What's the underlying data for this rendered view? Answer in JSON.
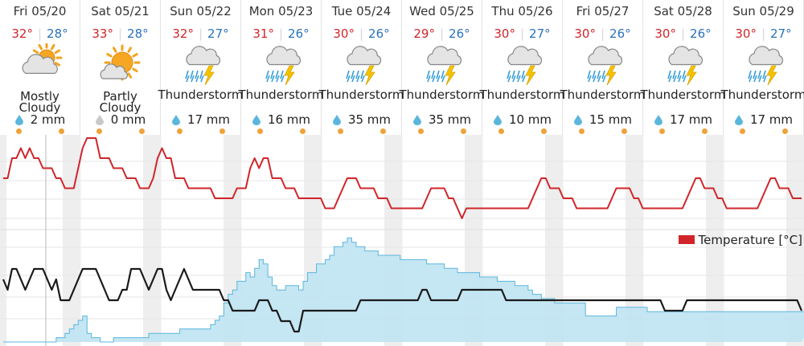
{
  "days": [
    {
      "date": "Fri 05/20",
      "max": "32°",
      "min": "28°",
      "condition": "Mostly Cloudy",
      "condition_line1": "Mostly",
      "condition_line2": "Cloudy",
      "precip": "2 mm",
      "icon": "mostly-cloudy-icon"
    },
    {
      "date": "Sat 05/21",
      "max": "33°",
      "min": "28°",
      "condition": "Partly Cloudy",
      "condition_line1": "Partly",
      "condition_line2": "Cloudy",
      "precip": "0 mm",
      "icon": "partly-cloudy-icon"
    },
    {
      "date": "Sun 05/22",
      "max": "32°",
      "min": "27°",
      "condition": "Thunderstorm",
      "precip": "17 mm",
      "icon": "thunderstorm-icon"
    },
    {
      "date": "Mon 05/23",
      "max": "31°",
      "min": "26°",
      "condition": "Thunderstorm",
      "precip": "16 mm",
      "icon": "thunderstorm-icon"
    },
    {
      "date": "Tue 05/24",
      "max": "30°",
      "min": "26°",
      "condition": "Thunderstorm",
      "precip": "35 mm",
      "icon": "thunderstorm-icon"
    },
    {
      "date": "Wed 05/25",
      "max": "29°",
      "min": "26°",
      "condition": "Thunderstorm",
      "precip": "35 mm",
      "icon": "thunderstorm-icon"
    },
    {
      "date": "Thu 05/26",
      "max": "30°",
      "min": "27°",
      "condition": "Thunderstorm",
      "precip": "10 mm",
      "icon": "thunderstorm-icon"
    },
    {
      "date": "Fri 05/27",
      "max": "30°",
      "min": "26°",
      "condition": "Thunderstorm",
      "precip": "15 mm",
      "icon": "thunderstorm-icon"
    },
    {
      "date": "Sat 05/28",
      "max": "30°",
      "min": "26°",
      "condition": "Thunderstorm",
      "precip": "17 mm",
      "icon": "thunderstorm-icon"
    },
    {
      "date": "Sun 05/29",
      "max": "30°",
      "min": "27°",
      "condition": "Thunderstorm",
      "precip": "17 mm",
      "icon": "thunderstorm-icon"
    }
  ],
  "legend": {
    "temperature": "Temperature [°C]"
  },
  "colors": {
    "temperature": "#d0252a",
    "cloud_fill": "#bfe3f2",
    "cloud_line": "#5bb6dd",
    "black_line": "#1a1a1a",
    "night_band": "#eeeeee",
    "max": "#d0252a",
    "min": "#2a73b8"
  },
  "chart_data": {
    "type": "line",
    "series": [
      {
        "name": "Temperature [°C]",
        "values": [
          29,
          29,
          31,
          31,
          32,
          31,
          32,
          31,
          31,
          30,
          30,
          30,
          29,
          29,
          28,
          28,
          28,
          30,
          32,
          33,
          33,
          33,
          31,
          31,
          31,
          30,
          30,
          30,
          29,
          29,
          29,
          28,
          28,
          28,
          29,
          31,
          32,
          31,
          31,
          29,
          29,
          29,
          28,
          28,
          28,
          28,
          28,
          28,
          27,
          27,
          27,
          27,
          27,
          28,
          28,
          28,
          30,
          31,
          30,
          31,
          31,
          29,
          29,
          29,
          28,
          28,
          28,
          27,
          27,
          27,
          27,
          27,
          27,
          26,
          26,
          26,
          27,
          28,
          29,
          29,
          29,
          28,
          28,
          28,
          28,
          27,
          27,
          27,
          26,
          26,
          26,
          26,
          26,
          26,
          26,
          26,
          27,
          28,
          28,
          28,
          28,
          27,
          27,
          26,
          25,
          26,
          26,
          26,
          26,
          26,
          26,
          26,
          26,
          26,
          26,
          26,
          26,
          26,
          26,
          26,
          27,
          28,
          29,
          29,
          28,
          28,
          28,
          27,
          27,
          27,
          26,
          26,
          26,
          26,
          26,
          26,
          26,
          26,
          27,
          28,
          28,
          28,
          28,
          27,
          27,
          26,
          26,
          26,
          26,
          26,
          26,
          26,
          26,
          26,
          26,
          27,
          28,
          29,
          29,
          28,
          28,
          28,
          27,
          27,
          26,
          26,
          26,
          26,
          26,
          26,
          26,
          26,
          27,
          28,
          29,
          29,
          28,
          28,
          28,
          27,
          27,
          27
        ]
      },
      {
        "values": [
          5,
          4,
          6,
          6,
          5,
          4,
          5,
          6,
          6,
          6,
          5,
          4,
          5,
          3,
          3,
          3,
          4,
          5,
          6,
          6,
          6,
          6,
          5,
          4,
          3,
          3,
          3,
          4,
          4,
          6,
          6,
          6,
          5,
          4,
          5,
          6,
          6,
          4,
          3,
          4,
          5,
          6,
          5,
          4,
          4,
          4,
          4,
          4,
          4,
          4,
          3,
          3,
          2,
          2,
          2,
          2,
          2,
          2,
          3,
          3,
          3,
          2,
          2,
          1,
          1,
          1,
          0,
          0,
          2,
          2,
          2,
          2,
          2,
          2,
          2,
          2,
          2,
          2,
          2,
          2,
          2,
          3,
          3,
          3,
          3,
          3,
          3,
          3,
          3,
          3,
          3,
          3,
          3,
          3,
          3,
          4,
          4,
          3,
          3,
          3,
          3,
          3,
          3,
          3,
          4,
          4,
          4,
          4,
          4,
          4,
          4,
          4,
          4,
          4,
          3,
          3,
          3,
          3,
          3,
          3,
          3,
          3,
          3,
          3,
          3,
          3,
          3,
          3,
          3,
          3,
          3,
          3,
          3,
          3,
          3,
          3,
          3,
          3,
          3,
          3,
          3,
          3,
          3,
          3,
          3,
          3,
          3,
          3,
          3,
          3,
          2,
          2,
          2,
          2,
          2,
          3,
          3,
          3,
          3,
          3,
          3,
          3,
          3,
          3,
          3,
          3,
          3,
          3,
          3,
          3,
          3,
          3,
          3,
          3,
          3,
          3,
          3,
          3,
          3,
          3,
          3,
          2
        ]
      },
      {
        "values": [
          0,
          0,
          0,
          0,
          0,
          0,
          0,
          0,
          0,
          0,
          0,
          0,
          1,
          1,
          2,
          3,
          4,
          5,
          6,
          2,
          1,
          1,
          0,
          0,
          0,
          1,
          1,
          1,
          1,
          1,
          1,
          1,
          1,
          2,
          2,
          2,
          2,
          2,
          2,
          2,
          3,
          3,
          3,
          3,
          3,
          3,
          3,
          4,
          5,
          6,
          9,
          11,
          12,
          14,
          14,
          16,
          15,
          17,
          19,
          18,
          15,
          13,
          12,
          12,
          13,
          13,
          13,
          12,
          14,
          16,
          16,
          18,
          18,
          19,
          20,
          22,
          22,
          23,
          24,
          23,
          22,
          22,
          21,
          21,
          21,
          20,
          20,
          20,
          20,
          20,
          19,
          19,
          19,
          19,
          19,
          19,
          18,
          18,
          18,
          18,
          17,
          17,
          17,
          16,
          16,
          16,
          16,
          16,
          15,
          15,
          15,
          15,
          14,
          14,
          14,
          14,
          13,
          13,
          13,
          12,
          11,
          11,
          10,
          10,
          10,
          9,
          9,
          9,
          9,
          9,
          9,
          9,
          6,
          6,
          6,
          6,
          6,
          6,
          6,
          8,
          8,
          8,
          8,
          8,
          8,
          8,
          7,
          7,
          7,
          7,
          7,
          7,
          7,
          7,
          7,
          7,
          7,
          7,
          7,
          7,
          7,
          7,
          7,
          7,
          7,
          7,
          7,
          7,
          7,
          7,
          7,
          7,
          7,
          7,
          7,
          7,
          7,
          7,
          7,
          7,
          7,
          7,
          7,
          7,
          7,
          7
        ]
      }
    ]
  }
}
